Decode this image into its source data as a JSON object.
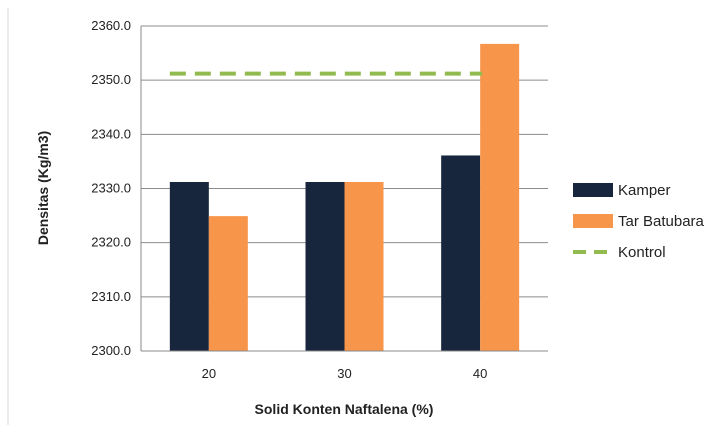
{
  "chart_data": {
    "type": "bar",
    "categories": [
      "20",
      "30",
      "40"
    ],
    "series": [
      {
        "name": "Kamper",
        "values": [
          2331.2,
          2331.2,
          2336.1
        ],
        "color": "#17263d"
      },
      {
        "name": "Tar Batubara",
        "values": [
          2324.9,
          2331.2,
          2356.7
        ],
        "color": "#f7964a"
      }
    ],
    "reference_line": {
      "name": "Kontrol",
      "value": 2351.2,
      "color": "#92bb4f",
      "style": "dashed"
    },
    "xlabel": "Solid Konten  Naftalena (%)",
    "ylabel": "Densitas (Kg/m3)",
    "ylim": [
      2300.0,
      2360.0
    ],
    "yticks": [
      "2300.0",
      "2310.0",
      "2320.0",
      "2330.0",
      "2340.0",
      "2350.0",
      "2360.0"
    ],
    "grid": true,
    "legend_position": "right"
  }
}
